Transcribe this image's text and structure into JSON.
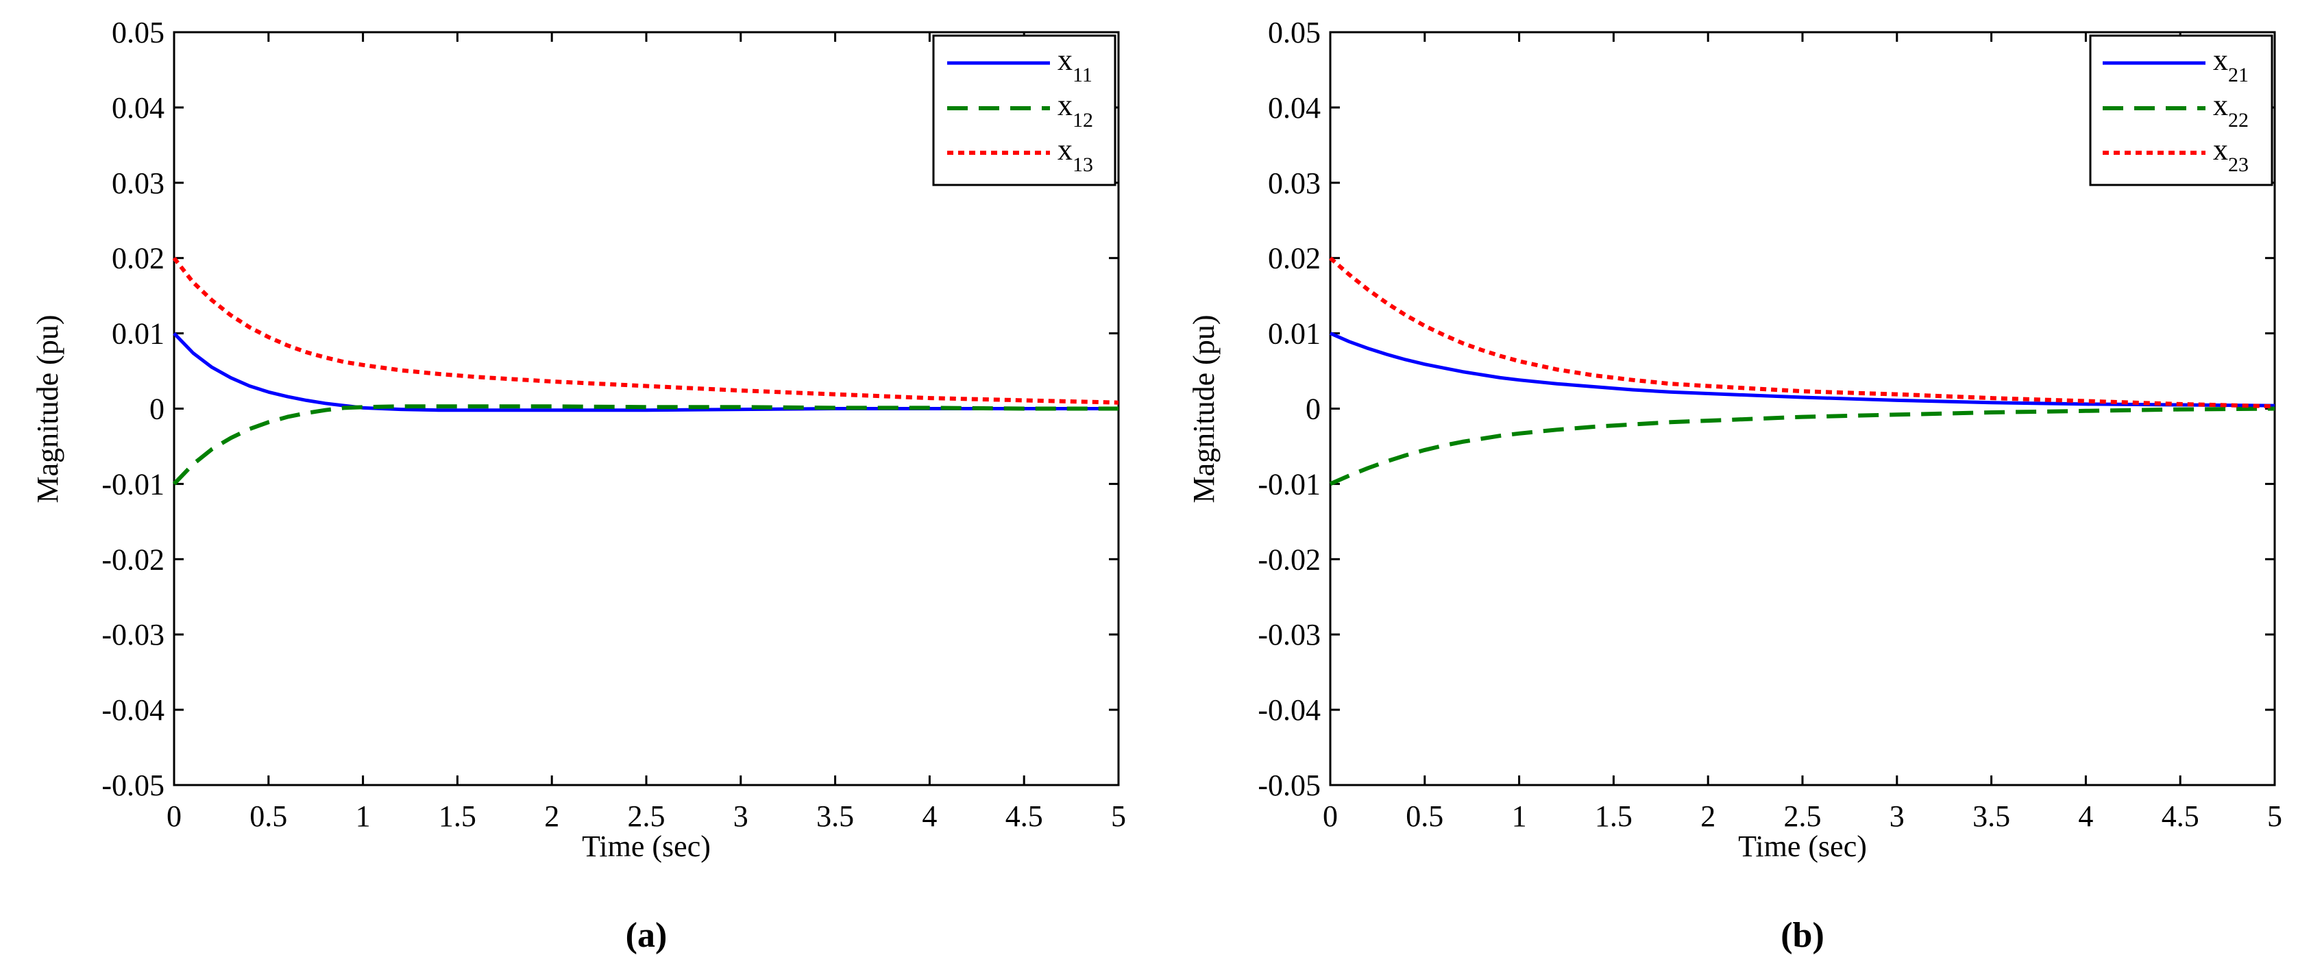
{
  "chart_data": [
    {
      "type": "line",
      "panel_label": "(a)",
      "title": "",
      "xlabel": "Time (sec)",
      "ylabel": "Magnitude (pu)",
      "xlim": [
        0,
        5
      ],
      "ylim": [
        -0.05,
        0.05
      ],
      "xticks": [
        0,
        0.5,
        1,
        1.5,
        2,
        2.5,
        3,
        3.5,
        4,
        4.5,
        5
      ],
      "xtick_labels": [
        "0",
        "0.5",
        "1",
        "1.5",
        "2",
        "2.5",
        "3",
        "3.5",
        "4",
        "4.5",
        "5"
      ],
      "yticks": [
        -0.05,
        -0.04,
        -0.03,
        -0.02,
        -0.01,
        0,
        0.01,
        0.02,
        0.03,
        0.04,
        0.05
      ],
      "ytick_labels": [
        "-0.05",
        "-0.04",
        "-0.03",
        "-0.02",
        "-0.01",
        "0",
        "0.01",
        "0.02",
        "0.03",
        "0.04",
        "0.05"
      ],
      "grid": false,
      "legend_position": "top-right",
      "x": [
        0,
        0.1,
        0.2,
        0.3,
        0.4,
        0.5,
        0.6,
        0.7,
        0.8,
        0.9,
        1.0,
        1.2,
        1.4,
        1.6,
        1.8,
        2.0,
        2.5,
        3.0,
        3.5,
        4.0,
        4.5,
        5.0
      ],
      "series": [
        {
          "name": "x11",
          "label_base": "x",
          "label_sub": "11",
          "color": "#0000ff",
          "style": "solid",
          "values": [
            0.01,
            0.0074,
            0.0055,
            0.0041,
            0.003,
            0.0022,
            0.0016,
            0.0011,
            0.0007,
            0.0004,
            0.0001,
            -0.0001,
            -0.0002,
            -0.0002,
            -0.0002,
            -0.0002,
            -0.0002,
            -0.0001,
            0,
            0,
            0,
            0
          ]
        },
        {
          "name": "x12",
          "label_base": "x",
          "label_sub": "12",
          "color": "#008000",
          "style": "dashed",
          "values": [
            -0.01,
            -0.0074,
            -0.0054,
            -0.0039,
            -0.0027,
            -0.0018,
            -0.0011,
            -0.0006,
            -0.0002,
            0.0001,
            0.0002,
            0.0003,
            0.0003,
            0.0003,
            0.0003,
            0.0003,
            0.0002,
            0.0002,
            0.0001,
            0.0001,
            0,
            0
          ]
        },
        {
          "name": "x13",
          "label_base": "x",
          "label_sub": "13",
          "color": "#ff0000",
          "style": "dotted",
          "values": [
            0.02,
            0.0168,
            0.0144,
            0.0124,
            0.0108,
            0.0095,
            0.0084,
            0.0075,
            0.0068,
            0.0062,
            0.0058,
            0.0051,
            0.0046,
            0.0042,
            0.0039,
            0.0036,
            0.003,
            0.0024,
            0.0019,
            0.0014,
            0.0011,
            0.0008
          ]
        }
      ]
    },
    {
      "type": "line",
      "panel_label": "(b)",
      "title": "",
      "xlabel": "Time (sec)",
      "ylabel": "Magnitude (pu)",
      "xlim": [
        0,
        5
      ],
      "ylim": [
        -0.05,
        0.05
      ],
      "xticks": [
        0,
        0.5,
        1,
        1.5,
        2,
        2.5,
        3,
        3.5,
        4,
        4.5,
        5
      ],
      "xtick_labels": [
        "0",
        "0.5",
        "1",
        "1.5",
        "2",
        "2.5",
        "3",
        "3.5",
        "4",
        "4.5",
        "5"
      ],
      "yticks": [
        -0.05,
        -0.04,
        -0.03,
        -0.02,
        -0.01,
        0,
        0.01,
        0.02,
        0.03,
        0.04,
        0.05
      ],
      "ytick_labels": [
        "-0.05",
        "-0.04",
        "-0.03",
        "-0.02",
        "-0.01",
        "0",
        "0.01",
        "0.02",
        "0.03",
        "0.04",
        "0.05"
      ],
      "grid": false,
      "legend_position": "top-right",
      "x": [
        0,
        0.1,
        0.2,
        0.3,
        0.4,
        0.5,
        0.6,
        0.7,
        0.8,
        0.9,
        1.0,
        1.2,
        1.4,
        1.6,
        1.8,
        2.0,
        2.5,
        3.0,
        3.5,
        4.0,
        4.5,
        5.0
      ],
      "series": [
        {
          "name": "x21",
          "label_base": "x",
          "label_sub": "21",
          "color": "#0000ff",
          "style": "solid",
          "values": [
            0.01,
            0.0089,
            0.008,
            0.0072,
            0.0065,
            0.0059,
            0.0054,
            0.0049,
            0.0045,
            0.0041,
            0.0038,
            0.0033,
            0.0029,
            0.0025,
            0.0022,
            0.002,
            0.0015,
            0.0011,
            0.0008,
            0.0006,
            0.0005,
            0.0004
          ]
        },
        {
          "name": "x22",
          "label_base": "x",
          "label_sub": "22",
          "color": "#008000",
          "style": "dashed",
          "values": [
            -0.01,
            -0.0089,
            -0.0079,
            -0.007,
            -0.0062,
            -0.0055,
            -0.0049,
            -0.0044,
            -0.004,
            -0.0036,
            -0.0033,
            -0.0028,
            -0.0024,
            -0.0021,
            -0.0018,
            -0.0016,
            -0.0011,
            -0.0008,
            -0.0005,
            -0.0003,
            -0.0001,
            0
          ]
        },
        {
          "name": "x23",
          "label_base": "x",
          "label_sub": "23",
          "color": "#ff0000",
          "style": "dotted",
          "values": [
            0.02,
            0.0178,
            0.0158,
            0.014,
            0.0124,
            0.011,
            0.0098,
            0.0087,
            0.0078,
            0.007,
            0.0063,
            0.0052,
            0.0044,
            0.0038,
            0.0033,
            0.003,
            0.0023,
            0.0019,
            0.0014,
            0.001,
            0.0006,
            0.0003
          ]
        }
      ]
    }
  ]
}
